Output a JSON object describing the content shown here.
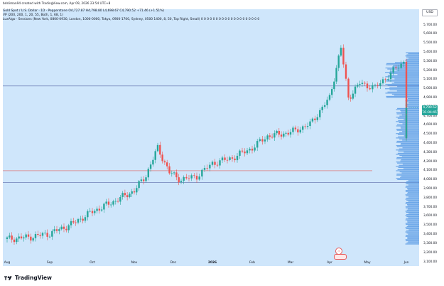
{
  "header": {
    "title": "bdsliman94 created with TradingView.com, Apr 09, 2026 23:54 UTC+8"
  },
  "legend": {
    "line1": "Gold Spot / U.S. Dollar · 1D · Pepperstone  O4,727.87  H4,798.80  L4,698.67  C4,790.52  +71.46 (+1.51%)",
    "line2": "VP (200, 200, 1, 20, 55, Both, 1, 68, 1)",
    "line3": "LuxAlgo · Sessions (New York, 0800-0930, London, 1000-0000, Tokyo, 0900-1700, Sydney, 0500 1400, 8, 50, Top Right, Small)  0  0  0  0  0  0  0  0  0  0  0  0  0  0  0  0  0  0  0  0"
  },
  "currency": "USD",
  "price_axis": {
    "ticks": [
      "5,700.00",
      "5,600.00",
      "5,500.00",
      "5,400.00",
      "5,300.00",
      "5,200.00",
      "5,100.00",
      "5,000.00",
      "4,900.00",
      "4,800.00",
      "4,700.00",
      "4,600.00",
      "4,500.00",
      "4,400.00",
      "4,300.00",
      "4,200.00",
      "4,100.00",
      "4,000.00",
      "3,900.00",
      "3,800.00",
      "3,700.00",
      "3,600.00",
      "3,500.00",
      "3,400.00",
      "3,300.00",
      "3,200.00",
      "3,100.00"
    ],
    "last_price": "4,790.52",
    "last_price_sub": "01:04:45",
    "last_price_color": "#26a69a"
  },
  "time_axis": {
    "ticks": [
      "Aug",
      "Sep",
      "Oct",
      "Nov",
      "Dec",
      "2026",
      "Feb",
      "Mar",
      "Apr",
      "May",
      "Jun"
    ]
  },
  "footer": {
    "brand": "TradingView"
  },
  "colors": {
    "background": "#cfe6fb",
    "up": "#26a69a",
    "down": "#ef5350",
    "hline_blue": "#5b6aa8",
    "hline_red": "#e35a5a",
    "profile": "#4a90e2"
  },
  "chart_data": {
    "type": "candlestick",
    "symbol": "Gold Spot / U.S. Dollar",
    "interval": "1D",
    "y_range": [
      3100,
      5700
    ],
    "x_categories": [
      "Aug",
      "Sep",
      "Oct",
      "Nov",
      "Dec",
      "2026",
      "Feb",
      "Mar",
      "Apr",
      "May",
      "Jun"
    ],
    "horizontal_levels": [
      {
        "value": 5030,
        "color": "#5b6aa8"
      },
      {
        "value": 4100,
        "color": "#e35a5a"
      },
      {
        "value": 3970,
        "color": "#5b6aa8"
      }
    ],
    "candles_anchor": [
      {
        "x": 0.0,
        "close": 3350
      },
      {
        "x": 0.5,
        "close": 3370
      },
      {
        "x": 1.0,
        "close": 3410
      },
      {
        "x": 1.5,
        "close": 3510
      },
      {
        "x": 2.0,
        "close": 3650
      },
      {
        "x": 2.5,
        "close": 3760
      },
      {
        "x": 3.0,
        "close": 3880
      },
      {
        "x": 3.3,
        "close": 4050
      },
      {
        "x": 3.6,
        "close": 4350
      },
      {
        "x": 3.9,
        "close": 4080
      },
      {
        "x": 4.2,
        "close": 4000
      },
      {
        "x": 4.6,
        "close": 4040
      },
      {
        "x": 5.0,
        "close": 4180
      },
      {
        "x": 5.5,
        "close": 4240
      },
      {
        "x": 6.0,
        "close": 4350
      },
      {
        "x": 6.4,
        "close": 4480
      },
      {
        "x": 7.0,
        "close": 4520
      },
      {
        "x": 7.5,
        "close": 4610
      },
      {
        "x": 8.0,
        "close": 4900
      },
      {
        "x": 8.3,
        "close": 5450
      },
      {
        "x": 8.5,
        "close": 4900
      },
      {
        "x": 8.8,
        "close": 5060
      },
      {
        "x": 9.2,
        "close": 5010
      },
      {
        "x": 9.6,
        "close": 5170
      },
      {
        "x": 10.0,
        "close": 5320
      },
      {
        "x": 10.3,
        "close": 5200
      },
      {
        "x": 10.7,
        "close": 5150
      },
      {
        "x": 11.0,
        "close": 4980
      },
      {
        "x": 11.3,
        "close": 4500
      },
      {
        "x": 11.5,
        "close": 4420
      },
      {
        "x": 11.8,
        "close": 4560
      },
      {
        "x": 12.1,
        "close": 4680
      },
      {
        "x": 12.4,
        "close": 4790
      }
    ]
  }
}
